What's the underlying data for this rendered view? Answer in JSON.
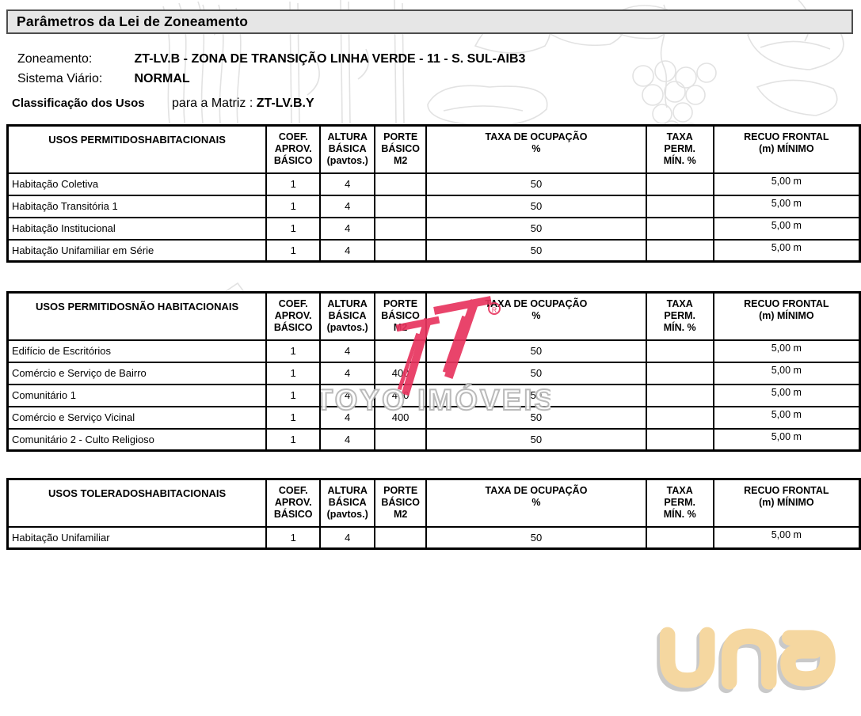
{
  "page": {
    "title": "Parâmetros da Lei de Zoneamento"
  },
  "header": {
    "zoneamento_label": "Zoneamento:",
    "zoneamento_value": "ZT-LV.B - ZONA DE TRANSIÇÃO LINHA VERDE - 11 - S. SUL-AIB3",
    "sistema_viario_label": "Sistema Viário:",
    "sistema_viario_value": "NORMAL",
    "classificacao_label": "Classificação dos Usos",
    "matriz_label": "para a Matriz :",
    "matriz_value": "ZT-LV.B.Y"
  },
  "column_headers": [
    "COEF.\nAPROV.\nBÁSICO",
    "ALTURA\nBÁSICA\n(pavtos.)",
    "PORTE\nBÁSICO\nM2",
    "TAXA DE OCUPAÇÃO\n%",
    "TAXA\nPERM.\nMÍN. %",
    "RECUO FRONTAL\n(m) MÍNIMO"
  ],
  "tables": [
    {
      "title": "USOS PERMITIDOSHABITACIONAIS",
      "rows": [
        [
          "Habitação Coletiva",
          "1",
          "4",
          "",
          "50",
          "",
          "5,00 m"
        ],
        [
          "Habitação Transitória 1",
          "1",
          "4",
          "",
          "50",
          "",
          "5,00 m"
        ],
        [
          "Habitação Institucional",
          "1",
          "4",
          "",
          "50",
          "",
          "5,00 m"
        ],
        [
          "Habitação Unifamiliar em Série",
          "1",
          "4",
          "",
          "50",
          "",
          "5,00 m"
        ]
      ]
    },
    {
      "title": "USOS PERMITIDOSNÃO HABITACIONAIS",
      "rows": [
        [
          "Edifício de Escritórios",
          "1",
          "4",
          "",
          "50",
          "",
          "5,00 m"
        ],
        [
          "Comércio e Serviço de Bairro",
          "1",
          "4",
          "400",
          "50",
          "",
          "5,00 m"
        ],
        [
          "Comunitário 1",
          "1",
          "4",
          "400",
          "50",
          "",
          "5,00 m"
        ],
        [
          "Comércio e Serviço Vicinal",
          "1",
          "4",
          "400",
          "50",
          "",
          "5,00 m"
        ],
        [
          "Comunitário 2 - Culto Religioso",
          "1",
          "4",
          "",
          "50",
          "",
          "5,00 m"
        ]
      ]
    },
    {
      "title": "USOS TOLERADOSHABITACIONAIS",
      "rows": [
        [
          "Habitação Unifamiliar",
          "1",
          "4",
          "",
          "50",
          "",
          "5,00 m"
        ]
      ]
    }
  ],
  "watermarks": {
    "toyo_text": "TOYO IMÓVEIS",
    "toyo_registered": "R",
    "toyo_red": "#e8355f",
    "toyo_gray": "#b5b5b5",
    "una_text": "una",
    "una_color": "#f5d7a0",
    "una_shadow": "#c9c9c9",
    "sketch_color": "#e2e2e2",
    "titlebar_bg": "#e6e6e6"
  }
}
